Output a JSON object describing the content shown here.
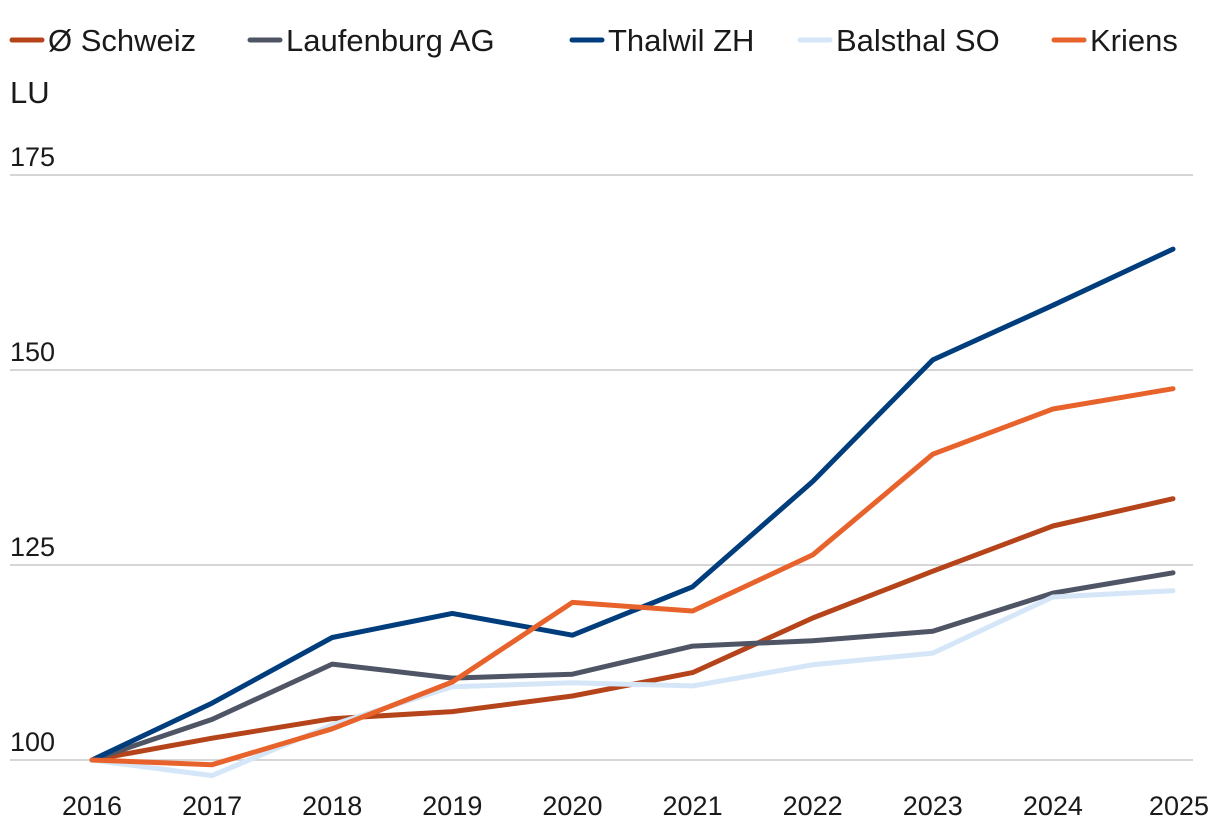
{
  "chart_data": {
    "type": "line",
    "title": "",
    "xlabel": "",
    "ylabel": "",
    "legend_position": "top",
    "x": [
      "2016",
      "2017",
      "2018",
      "2019",
      "2020",
      "2021",
      "2022",
      "2023",
      "2024",
      "2025"
    ],
    "yticks": [
      100,
      125,
      150,
      175
    ],
    "ylim": [
      100,
      175
    ],
    "grid": true,
    "series": [
      {
        "name": "Ø Schweiz",
        "color": "#b5441a",
        "values": [
          100,
          102.8,
          105.3,
          106.2,
          108.2,
          111.2,
          118.2,
          124.2,
          130.0,
          133.5
        ]
      },
      {
        "name": "Laufenburg AG",
        "color": "#4f5565",
        "values": [
          100,
          105.2,
          112.3,
          110.5,
          111.0,
          114.6,
          115.3,
          116.5,
          121.4,
          124.0
        ]
      },
      {
        "name": "Thalwil ZH",
        "color": "#003d7c",
        "values": [
          100,
          107.3,
          115.7,
          118.8,
          116.0,
          122.2,
          135.7,
          151.3,
          158.3,
          165.5
        ]
      },
      {
        "name": "Balsthal SO",
        "color": "#d4e6f7",
        "values": [
          100,
          98.0,
          104.5,
          109.4,
          109.9,
          109.5,
          112.2,
          113.7,
          120.9,
          121.7
        ]
      },
      {
        "name": "Kriens LU",
        "color": "#e8632b",
        "values": [
          100,
          99.4,
          104.0,
          110.0,
          120.2,
          119.1,
          126.3,
          139.2,
          145.0,
          147.6
        ]
      }
    ]
  }
}
